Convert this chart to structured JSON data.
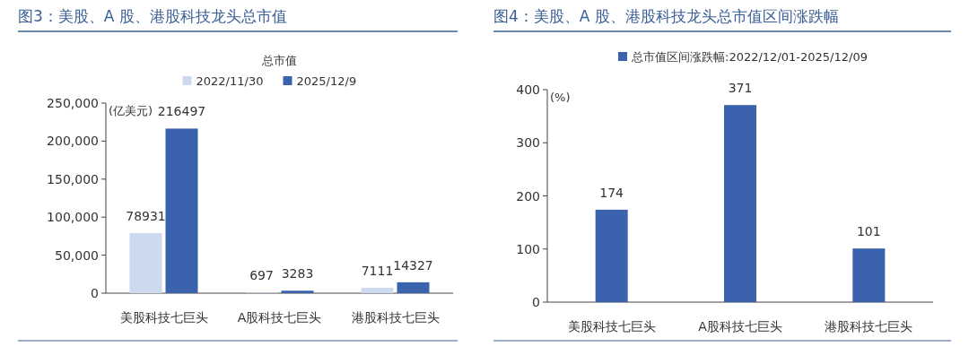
{
  "chart_data": [
    {
      "type": "bar",
      "title": "图3：美股、A 股、港股科技龙头总市值",
      "legend_title": "总市值",
      "ylabel": "(亿美元)",
      "categories": [
        "美股科技七巨头",
        "A股科技七巨头",
        "港股科技七巨头"
      ],
      "series": [
        {
          "name": "2022/11/30",
          "color": "#ccd9ee",
          "values": [
            78931,
            697,
            7111
          ]
        },
        {
          "name": "2025/12/9",
          "color": "#3a62ad",
          "values": [
            216497,
            3283,
            14327
          ]
        }
      ],
      "ylim": [
        0,
        250000
      ],
      "yticks": [
        0,
        {
          "value": 50000,
          "label": "50,000"
        },
        {
          "value": 100000,
          "label": "100,000"
        },
        {
          "value": 150000,
          "label": "150,000"
        },
        {
          "value": 200000,
          "label": "200,000"
        },
        {
          "value": 250000,
          "label": "250,000"
        }
      ],
      "data_labels": true,
      "legend": "top",
      "grid": false
    },
    {
      "type": "bar",
      "title": "图4：美股、A 股、港股科技龙头总市值区间涨跌幅",
      "ylabel": "(%)",
      "categories": [
        "美股科技七巨头",
        "A股科技七巨头",
        "港股科技七巨头"
      ],
      "series": [
        {
          "name": "总市值区间涨跌幅:2022/12/01-2025/12/09",
          "color": "#3a62ad",
          "values": [
            174,
            371,
            101
          ]
        }
      ],
      "ylim": [
        0,
        400
      ],
      "yticks": [
        0,
        100,
        200,
        300,
        400
      ],
      "data_labels": true,
      "legend": "top",
      "grid": false
    }
  ]
}
